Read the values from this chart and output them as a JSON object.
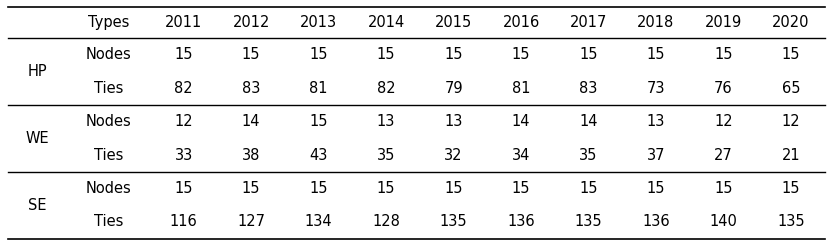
{
  "columns": [
    "Types",
    "2011",
    "2012",
    "2013",
    "2014",
    "2015",
    "2016",
    "2017",
    "2018",
    "2019",
    "2020"
  ],
  "groups": [
    {
      "label": "HP",
      "rows": [
        {
          "name": "Nodes",
          "values": [
            15,
            15,
            15,
            15,
            15,
            15,
            15,
            15,
            15,
            15
          ]
        },
        {
          "name": "Ties",
          "values": [
            82,
            83,
            81,
            82,
            79,
            81,
            83,
            73,
            76,
            65
          ]
        }
      ]
    },
    {
      "label": "WE",
      "rows": [
        {
          "name": "Nodes",
          "values": [
            12,
            14,
            15,
            13,
            13,
            14,
            14,
            13,
            12,
            12
          ]
        },
        {
          "name": "Ties",
          "values": [
            33,
            38,
            43,
            35,
            32,
            34,
            35,
            37,
            27,
            21
          ]
        }
      ]
    },
    {
      "label": "SE",
      "rows": [
        {
          "name": "Nodes",
          "values": [
            15,
            15,
            15,
            15,
            15,
            15,
            15,
            15,
            15,
            15
          ]
        },
        {
          "name": "Ties",
          "values": [
            116,
            127,
            134,
            128,
            135,
            136,
            135,
            136,
            140,
            135
          ]
        }
      ]
    }
  ],
  "background_color": "#ffffff",
  "text_color": "#000000",
  "header_fontsize": 10.5,
  "cell_fontsize": 10.5,
  "group_label_fontsize": 10.5
}
